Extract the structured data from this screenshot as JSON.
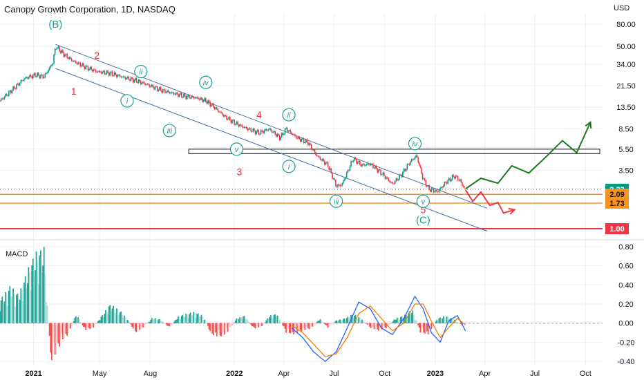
{
  "title": "Canopy Growth Corporation, 1D, NASDAQ",
  "chart_data": [
    {
      "type": "line",
      "title": "Canopy Growth Corporation, 1D, NASDAQ",
      "y_scale": "log",
      "y_unit": "USD",
      "ylim": [
        0.85,
        100
      ],
      "y_ticks": [
        "80.00",
        "50.00",
        "34.00",
        "21.50",
        "13.50",
        "8.50",
        "5.50",
        "3.50"
      ],
      "x_ticks": [
        "2021",
        "May",
        "Aug",
        "2022",
        "Apr",
        "Jul",
        "Oct",
        "2023",
        "Apr",
        "Jul",
        "Oct"
      ],
      "grid": true,
      "price_series": {
        "x": [
          "2020-11-01",
          "2020-11-25",
          "2020-12-15",
          "2021-01-04",
          "2021-01-20",
          "2021-02-05",
          "2021-02-10",
          "2021-02-25",
          "2021-03-15",
          "2021-04-05",
          "2021-04-26",
          "2021-05-20",
          "2021-06-15",
          "2021-07-05",
          "2021-07-26",
          "2021-08-20",
          "2021-09-15",
          "2021-10-05",
          "2021-10-25",
          "2021-11-10",
          "2021-11-22",
          "2021-12-15",
          "2022-01-04",
          "2022-01-25",
          "2022-02-15",
          "2022-03-05",
          "2022-03-25",
          "2022-04-05",
          "2022-04-25",
          "2022-05-15",
          "2022-06-01",
          "2022-06-20",
          "2022-07-05",
          "2022-07-15",
          "2022-08-05",
          "2022-08-20",
          "2022-09-05",
          "2022-09-25",
          "2022-10-15",
          "2022-11-01",
          "2022-11-15",
          "2022-11-28",
          "2022-12-10",
          "2022-12-20",
          "2023-01-05",
          "2023-01-20",
          "2023-02-05",
          "2023-02-15",
          "2023-02-24"
        ],
        "y": [
          15.5,
          20,
          25,
          27,
          26,
          35,
          50,
          42,
          36,
          32,
          29,
          28,
          25.5,
          24,
          22,
          19.5,
          18,
          17,
          16.5,
          15.5,
          14,
          11,
          9.5,
          8.5,
          7.8,
          8.5,
          7,
          8.5,
          7,
          6.3,
          4.7,
          3.9,
          2.5,
          2.55,
          4.5,
          3.9,
          4,
          3.3,
          2.6,
          3.2,
          4.1,
          4.8,
          2.9,
          2.35,
          2.2,
          2.7,
          3.1,
          2.8,
          2.33
        ]
      },
      "last_price": "2.33",
      "levels": [
        {
          "label": "2.09",
          "value": 2.09,
          "color": "#f7931e"
        },
        {
          "label": "1.73",
          "value": 1.73,
          "color": "#f7931e"
        },
        {
          "label": "1.00",
          "value": 1.0,
          "color": "#f23645"
        }
      ],
      "resistance_zone": [
        5.0,
        5.5
      ],
      "channel": {
        "upper": {
          "x": [
            "2021-02-10",
            "2023-04-05"
          ],
          "y": [
            52,
            1.55
          ]
        },
        "lower": {
          "x": [
            "2021-02-10",
            "2023-04-05"
          ],
          "y": [
            31,
            0.95
          ]
        }
      },
      "projection_bullish": {
        "color": "#1b7a1b",
        "x": [
          "2023-02-25",
          "2023-03-25",
          "2023-04-25",
          "2023-05-20",
          "2023-06-20",
          "2023-07-20",
          "2023-08-20",
          "2023-09-15",
          "2023-10-10"
        ],
        "y": [
          2.35,
          2.95,
          2.65,
          3.85,
          3.3,
          4.6,
          6.6,
          5.1,
          9.8
        ]
      },
      "projection_bearish": {
        "color": "#f23645",
        "x": [
          "2023-02-25",
          "2023-03-10",
          "2023-03-25",
          "2023-04-10",
          "2023-04-25",
          "2023-05-05",
          "2023-05-25"
        ],
        "y": [
          2.3,
          1.8,
          2.2,
          1.65,
          1.75,
          1.4,
          1.5
        ]
      },
      "wave_labels": [
        {
          "text": "(B)",
          "x": "2021-02-10",
          "y": 80,
          "color": "#1a9e8f"
        },
        {
          "text": "(C)",
          "x": "2022-12-10",
          "y": 1.2,
          "color": "#1a9e8f"
        },
        {
          "text": "1",
          "x": "2021-03-15",
          "y": 19,
          "color": "#e8303a"
        },
        {
          "text": "2",
          "x": "2021-04-26",
          "y": 41,
          "color": "#e8303a"
        },
        {
          "text": "3",
          "x": "2022-01-10",
          "y": 3.4,
          "color": "#e8303a"
        },
        {
          "text": "4",
          "x": "2022-02-15",
          "y": 11.5,
          "color": "#e8303a"
        },
        {
          "text": "5",
          "x": "2022-12-10",
          "y": 1.5,
          "color": "#e8303a"
        },
        {
          "text": "i",
          "x": "2021-06-20",
          "y": 15.5,
          "color": "#1a9e8f",
          "circle": true
        },
        {
          "text": "ii",
          "x": "2021-07-15",
          "y": 29,
          "color": "#1a9e8f",
          "circle": true
        },
        {
          "text": "iii",
          "x": "2021-09-05",
          "y": 8.2,
          "color": "#1a9e8f",
          "circle": true
        },
        {
          "text": "iv",
          "x": "2021-11-10",
          "y": 23,
          "color": "#1a9e8f",
          "circle": true
        },
        {
          "text": "v",
          "x": "2022-01-05",
          "y": 5.5,
          "color": "#1a9e8f",
          "circle": true
        },
        {
          "text": "i",
          "x": "2022-04-10",
          "y": 3.8,
          "color": "#1a9e8f",
          "circle": true
        },
        {
          "text": "ii",
          "x": "2022-04-10",
          "y": 11.5,
          "color": "#1a9e8f",
          "circle": true
        },
        {
          "text": "iii",
          "x": "2022-07-05",
          "y": 1.8,
          "color": "#1a9e8f",
          "circle": true
        },
        {
          "text": "iv",
          "x": "2022-11-25",
          "y": 6.2,
          "color": "#1a9e8f",
          "circle": true
        },
        {
          "text": "v",
          "x": "2022-12-10",
          "y": 1.8,
          "color": "#1a9e8f",
          "circle": true
        }
      ]
    },
    {
      "type": "bar",
      "title": "MACD",
      "ylim": [
        -0.45,
        0.85
      ],
      "y_ticks": [
        "0.80",
        "0.60",
        "0.40",
        "0.20",
        "0.00",
        "-0.20",
        "-0.40"
      ],
      "histogram": {
        "x": [
          "2020-11-01",
          "2020-11-20",
          "2020-12-05",
          "2020-12-20",
          "2021-01-05",
          "2021-01-20",
          "2021-02-01",
          "2021-02-10",
          "2021-02-20",
          "2021-03-05",
          "2021-03-20",
          "2021-04-05",
          "2021-04-20",
          "2021-05-05",
          "2021-05-20",
          "2021-06-05",
          "2021-06-20",
          "2021-07-05",
          "2021-07-20",
          "2021-08-05",
          "2021-08-20",
          "2021-09-05",
          "2021-09-20",
          "2021-10-05",
          "2021-10-20",
          "2021-11-05",
          "2021-11-20",
          "2021-12-05",
          "2021-12-20",
          "2022-01-05",
          "2022-01-20",
          "2022-02-05",
          "2022-02-20",
          "2022-03-05",
          "2022-03-20",
          "2022-04-05",
          "2022-04-20",
          "2022-05-05",
          "2022-05-20",
          "2022-06-05",
          "2022-06-20",
          "2022-07-05",
          "2022-07-20",
          "2022-08-05",
          "2022-08-20",
          "2022-09-05",
          "2022-09-20",
          "2022-10-05",
          "2022-10-20",
          "2022-11-05",
          "2022-11-20",
          "2022-12-05",
          "2022-12-20",
          "2023-01-05",
          "2023-01-20",
          "2023-02-05",
          "2023-02-20"
        ],
        "values": [
          0.25,
          0.4,
          0.3,
          0.55,
          0.75,
          0.8,
          -0.4,
          -0.35,
          -0.2,
          -0.12,
          0.1,
          -0.08,
          -0.05,
          0.08,
          0.2,
          0.15,
          0.05,
          -0.1,
          -0.05,
          0.06,
          0.04,
          -0.05,
          0.07,
          0.1,
          0.12,
          0.08,
          -0.12,
          -0.15,
          -0.1,
          0.05,
          0.08,
          -0.06,
          -0.04,
          0.08,
          0.1,
          -0.1,
          -0.12,
          -0.08,
          -0.06,
          0.05,
          -0.05,
          0.03,
          0.05,
          0.1,
          0.05,
          -0.05,
          -0.08,
          -0.05,
          0.05,
          0.08,
          0.15,
          -0.1,
          -0.12,
          0.05,
          0.08,
          0.04,
          -0.03
        ]
      },
      "macd_line": {
        "color": "#2962ff",
        "x": [
          "2022-04-15",
          "2022-05-05",
          "2022-05-25",
          "2022-06-15",
          "2022-07-05",
          "2022-07-25",
          "2022-08-15",
          "2022-09-05",
          "2022-09-25",
          "2022-10-15",
          "2022-11-05",
          "2022-11-25",
          "2022-12-10",
          "2022-12-25",
          "2023-01-10",
          "2023-01-25",
          "2023-02-10",
          "2023-02-25"
        ],
        "y": [
          -0.05,
          -0.15,
          -0.3,
          -0.4,
          -0.3,
          -0.05,
          0.22,
          0.15,
          -0.05,
          -0.12,
          0.05,
          0.28,
          0.15,
          -0.1,
          -0.2,
          0.02,
          0.08,
          -0.08
        ]
      },
      "signal_line": {
        "color": "#f57c00",
        "x": [
          "2022-04-15",
          "2022-05-05",
          "2022-05-25",
          "2022-06-15",
          "2022-07-05",
          "2022-07-25",
          "2022-08-15",
          "2022-09-05",
          "2022-09-25",
          "2022-10-15",
          "2022-11-05",
          "2022-11-25",
          "2022-12-10",
          "2022-12-25",
          "2023-01-10",
          "2023-01-25",
          "2023-02-10",
          "2023-02-25"
        ],
        "y": [
          -0.02,
          -0.1,
          -0.22,
          -0.35,
          -0.32,
          -0.15,
          0.1,
          0.18,
          0.05,
          -0.08,
          0.0,
          0.2,
          0.2,
          0.02,
          -0.15,
          -0.05,
          0.05,
          -0.02
        ]
      }
    }
  ],
  "axis_unit": "USD",
  "macd_label": "MACD"
}
